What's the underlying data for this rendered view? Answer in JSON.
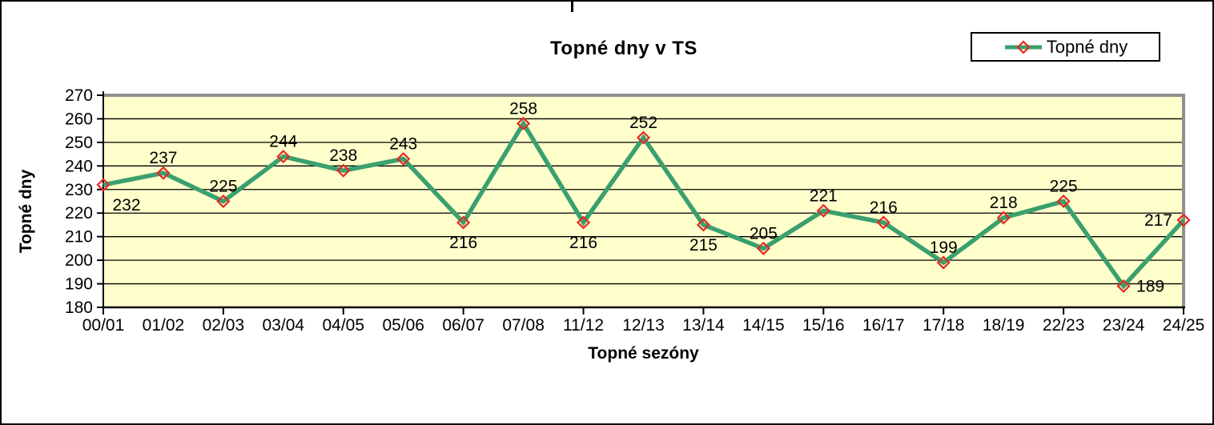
{
  "frame": {
    "background": "#ffffff",
    "border_color": "#000000"
  },
  "chart_data": {
    "type": "line",
    "title": "Topné dny v TS",
    "xlabel": "Topné sezóny",
    "ylabel": "Topné dny",
    "categories": [
      "00/01",
      "01/02",
      "02/03",
      "03/04",
      "04/05",
      "05/06",
      "06/07",
      "07/08",
      "11/12",
      "12/13",
      "13/14",
      "14/15",
      "15/16",
      "16/17",
      "17/18",
      "18/19",
      "22/23",
      "23/24",
      "24/25"
    ],
    "series": [
      {
        "name": "Topné dny",
        "values": [
          232,
          237,
          225,
          244,
          238,
          243,
          216,
          258,
          216,
          252,
          215,
          205,
          221,
          216,
          199,
          218,
          225,
          189,
          217
        ],
        "label_positions": [
          "below",
          "above",
          "above",
          "above",
          "above",
          "above",
          "below",
          "above",
          "below",
          "above",
          "below",
          "above",
          "above",
          "above",
          "above",
          "above",
          "above",
          "right",
          "left"
        ]
      }
    ],
    "ylim": [
      180,
      270
    ],
    "ytick_step": 10,
    "xtick_interval": 2,
    "grid": true,
    "data_labels": true,
    "legend": {
      "position": "top-right",
      "entries": [
        "Topné dny"
      ]
    },
    "colors": {
      "plot_bg": "#FFFFCC",
      "line": "#3AA06E",
      "marker_edge": "#E8281E",
      "marker_fill": "none",
      "grid": "#000000",
      "axis": "#000000",
      "plot_border_gray": "#909090",
      "text": "#000000"
    }
  }
}
